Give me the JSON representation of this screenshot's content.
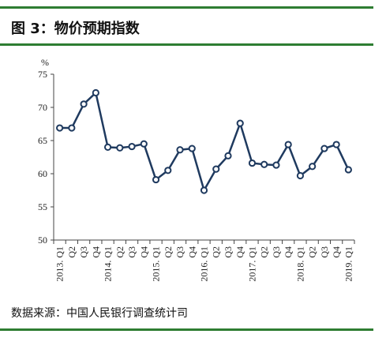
{
  "header": {
    "title": "图 3：物价预期指数"
  },
  "footer": {
    "source": "数据来源：中国人民银行调查统计司"
  },
  "colors": {
    "rule": "#2e7d32",
    "line": "#1f3a5f",
    "axis": "#444444"
  },
  "chart_data": {
    "type": "line",
    "title": "图 3：物价预期指数",
    "ylabel": "%",
    "ylim": [
      50,
      75
    ],
    "yticks": [
      50,
      55,
      60,
      65,
      70,
      75
    ],
    "grid": false,
    "categories": [
      "2013. Q1",
      "Q2",
      "Q3",
      "Q4",
      "2014. Q1",
      "Q2",
      "Q3",
      "Q4",
      "2015. Q1",
      "Q2",
      "Q3",
      "Q4",
      "2016. Q1",
      "Q2",
      "Q3",
      "Q4",
      "2017. Q1",
      "Q2",
      "Q3",
      "Q4",
      "2018. Q1",
      "Q2",
      "Q3",
      "Q4",
      "2019. Q1"
    ],
    "series": [
      {
        "values": [
          66.9,
          66.9,
          70.5,
          72.2,
          64.0,
          63.9,
          64.1,
          64.5,
          59.1,
          60.5,
          63.6,
          63.8,
          57.5,
          60.7,
          62.7,
          67.6,
          61.6,
          61.4,
          61.3,
          64.4,
          59.7,
          61.1,
          63.8,
          64.4,
          60.6
        ]
      }
    ]
  }
}
